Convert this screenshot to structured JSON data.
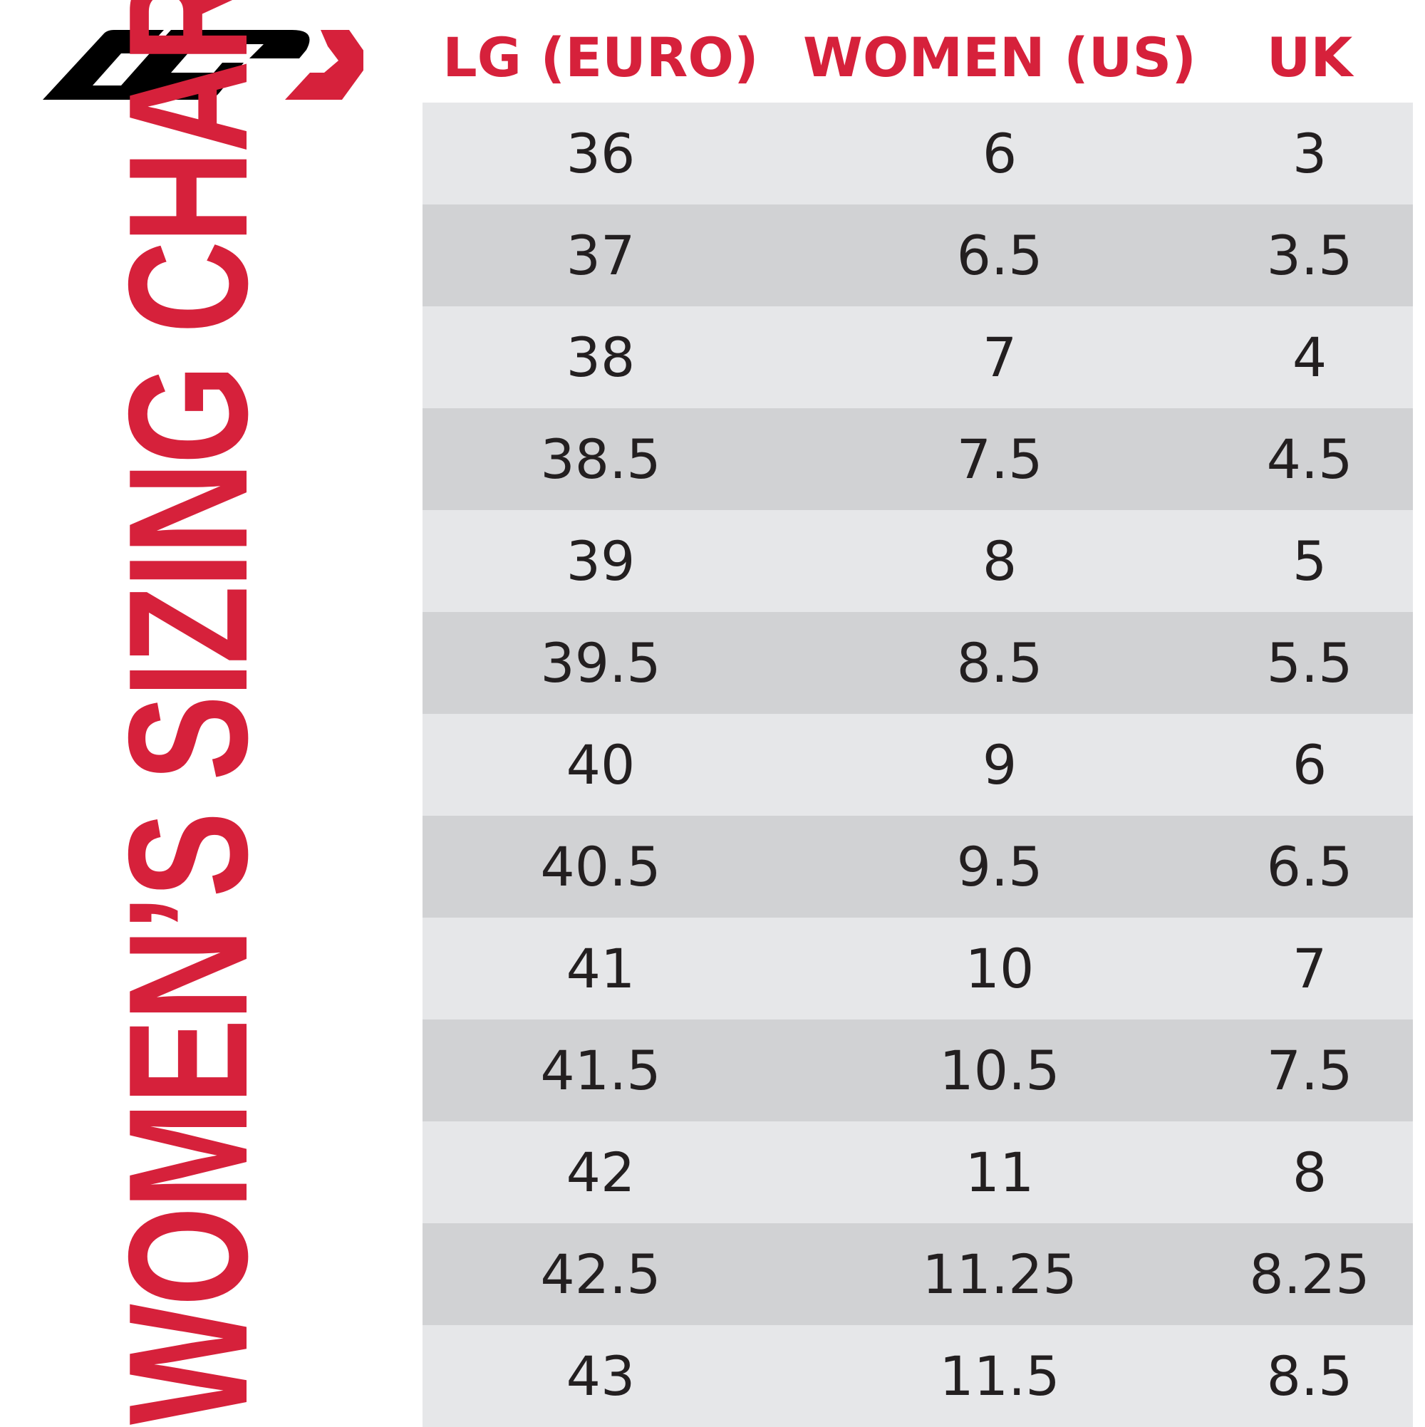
{
  "title": "WOMEN’S SIZING CHART",
  "logo": {
    "icon": "lg-logo-icon",
    "colors": {
      "black": "#000000",
      "red": "#d6213b"
    }
  },
  "colors": {
    "accent": "#d6213b",
    "row_light": "#e6e7e9",
    "row_dark": "#d1d2d4",
    "text": "#231f20"
  },
  "table": {
    "headers": [
      "LG (EURO)",
      "WOMEN (US)",
      "UK"
    ],
    "rows": [
      [
        "36",
        "6",
        "3"
      ],
      [
        "37",
        "6.5",
        "3.5"
      ],
      [
        "38",
        "7",
        "4"
      ],
      [
        "38.5",
        "7.5",
        "4.5"
      ],
      [
        "39",
        "8",
        "5"
      ],
      [
        "39.5",
        "8.5",
        "5.5"
      ],
      [
        "40",
        "9",
        "6"
      ],
      [
        "40.5",
        "9.5",
        "6.5"
      ],
      [
        "41",
        "10",
        "7"
      ],
      [
        "41.5",
        "10.5",
        "7.5"
      ],
      [
        "42",
        "11",
        "8"
      ],
      [
        "42.5",
        "11.25",
        "8.25"
      ],
      [
        "43",
        "11.5",
        "8.5"
      ]
    ]
  }
}
